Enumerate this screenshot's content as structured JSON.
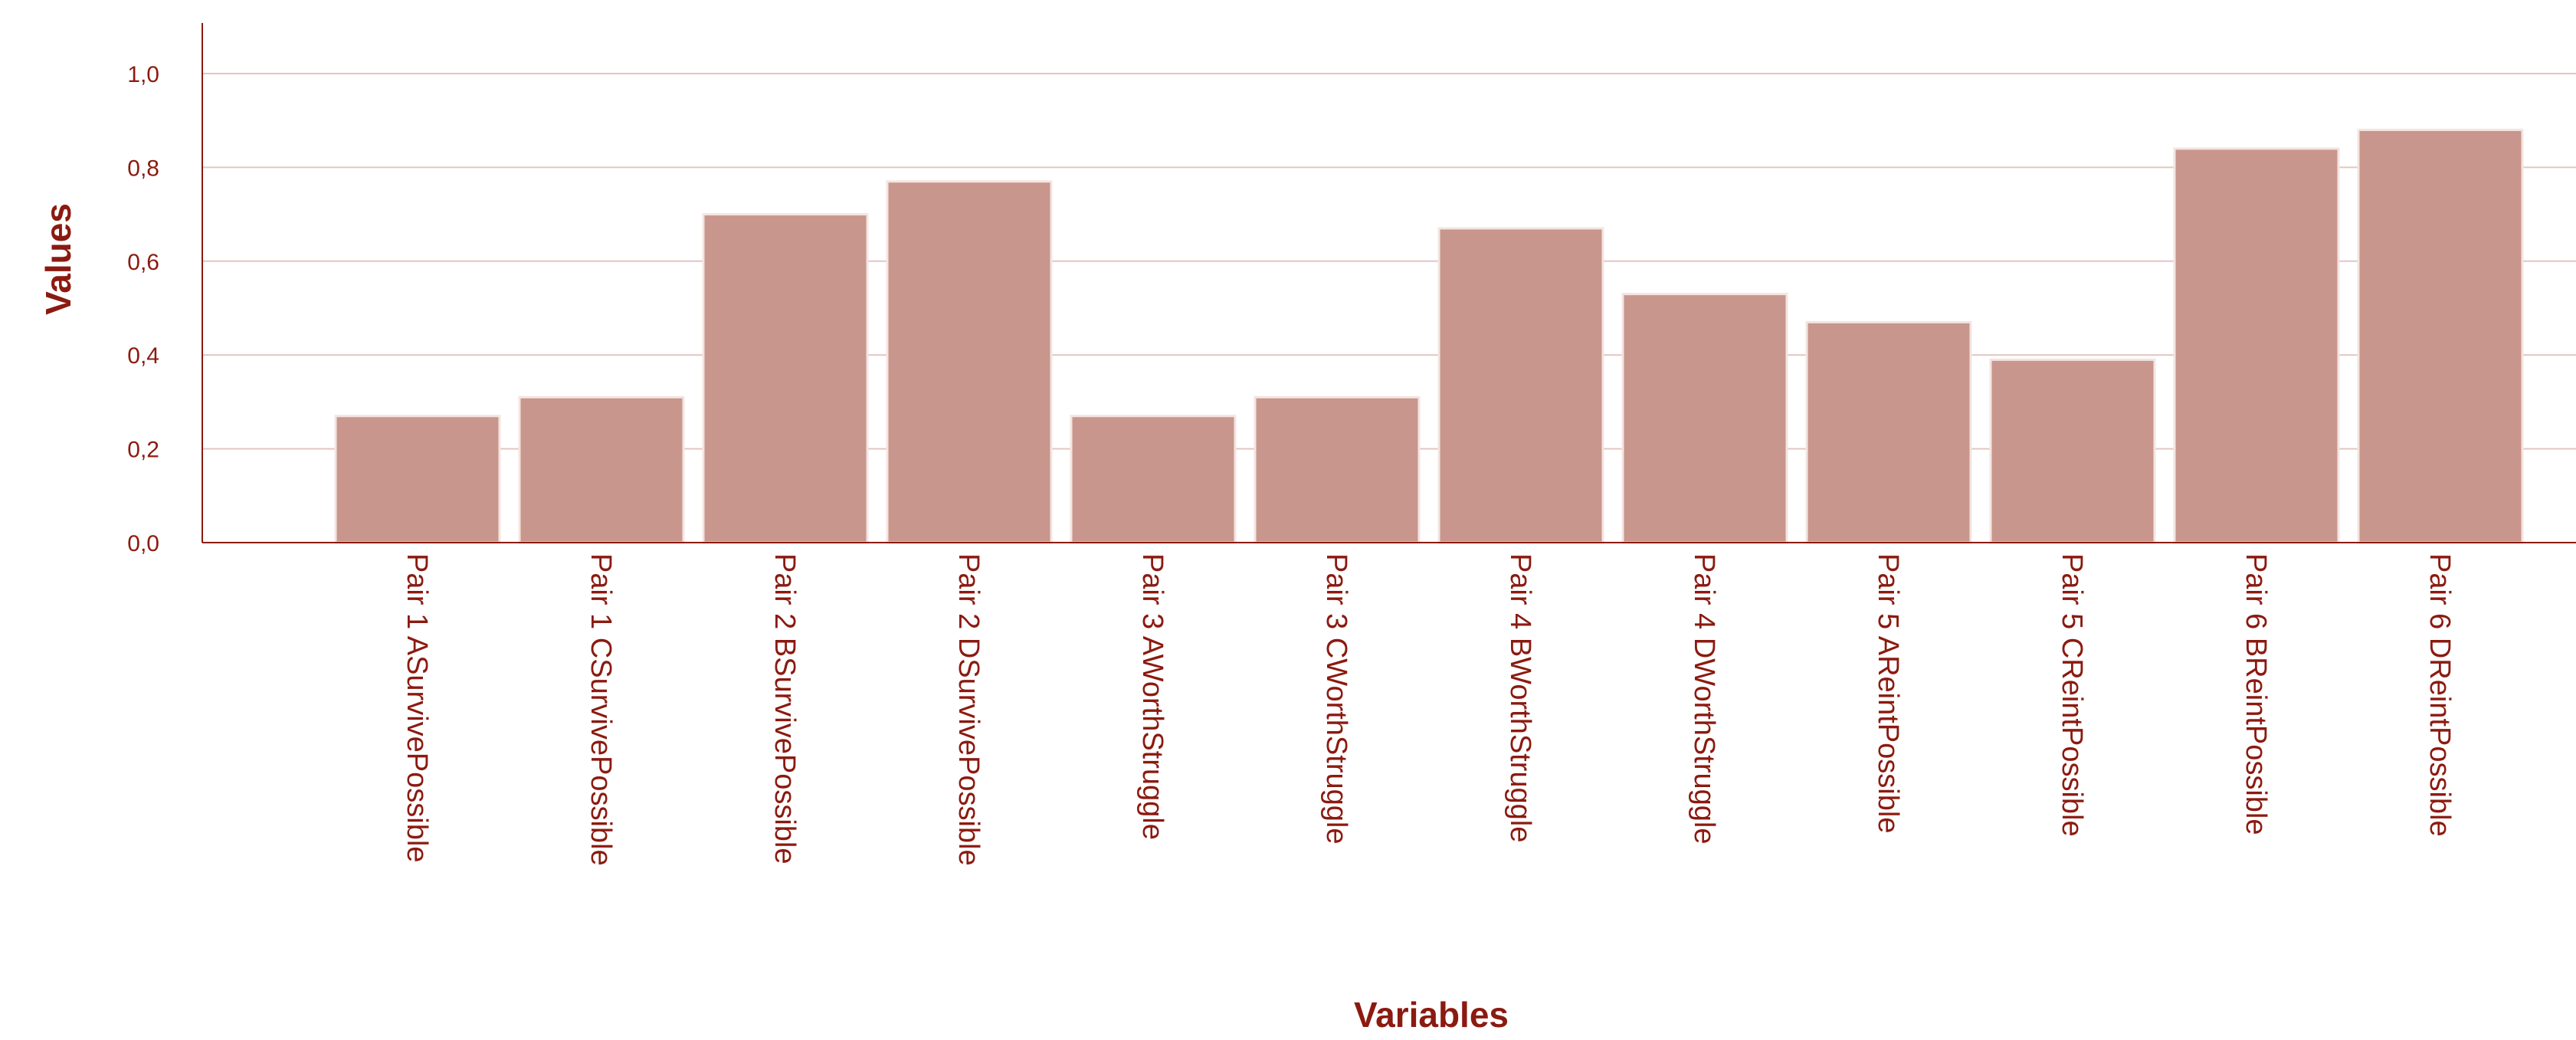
{
  "chart_data": {
    "type": "bar",
    "categories": [
      "Pair 1 ASurvivePossible",
      "Pair 1 CSurvivePossible",
      "Pair 2 BSurvivePossible",
      "Pair 2 DSurvivePossible",
      "Pair 3 AWorthStruggle",
      "Pair 3 CWorthStruggle",
      "Pair 4 BWorthStruggle",
      "Pair 4 DWorthStruggle",
      "Pair 5 AReintPossible",
      "Pair 5 CReintPossible",
      "Pair 6 BReintPossible",
      "Pair 6 DReintPossible"
    ],
    "values": [
      0.27,
      0.31,
      0.7,
      0.77,
      0.27,
      0.31,
      0.67,
      0.53,
      0.47,
      0.39,
      0.84,
      0.88
    ],
    "xlabel": "Variables",
    "ylabel": "Values",
    "ylim": [
      0,
      1.1
    ],
    "yticks": [
      "0,0",
      "0,2",
      "0,4",
      "0,6",
      "0,8",
      "1,0"
    ],
    "yticks_values": [
      0,
      0.2,
      0.4,
      0.6,
      0.8,
      1.0
    ],
    "grid": true,
    "legend": "none",
    "bar_color": "#c8968c",
    "text_color": "#8b1a10"
  }
}
